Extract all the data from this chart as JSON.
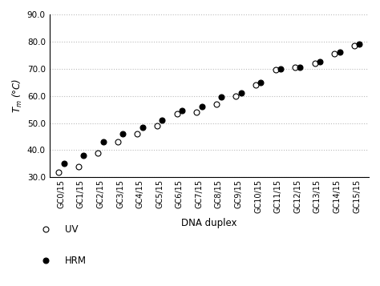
{
  "categories": [
    "GC0/15",
    "GC1/15",
    "GC2/15",
    "GC3/15",
    "GC4/15",
    "GC5/15",
    "GC6/15",
    "GC7/15",
    "GC8/15",
    "GC9/15",
    "GC10/15",
    "GC11/15",
    "GC12/15",
    "GC13/15",
    "GC14/15",
    "GC15/15"
  ],
  "uv_values": [
    32.0,
    34.0,
    39.0,
    43.0,
    46.0,
    49.0,
    53.5,
    54.0,
    57.0,
    60.0,
    64.0,
    69.5,
    70.5,
    72.0,
    75.5,
    78.5
  ],
  "hrm_values": [
    35.0,
    38.0,
    43.0,
    46.0,
    48.5,
    51.0,
    54.5,
    56.0,
    59.5,
    61.0,
    65.0,
    70.0,
    70.5,
    72.5,
    76.0,
    79.0
  ],
  "uv_color": "#ffffff",
  "uv_edgecolor": "#000000",
  "hrm_color": "#000000",
  "hrm_edgecolor": "#000000",
  "marker_size": 5,
  "xlabel": "DNA duplex",
  "ylabel": "$T_m$ (°C)",
  "ylim": [
    30.0,
    90.0
  ],
  "yticks": [
    30.0,
    40.0,
    50.0,
    60.0,
    70.0,
    80.0,
    90.0
  ],
  "grid_color": "#bbbbbb",
  "grid_style": "dotted",
  "background_color": "#ffffff",
  "legend_uv_label": "UV",
  "legend_hrm_label": "HRM"
}
